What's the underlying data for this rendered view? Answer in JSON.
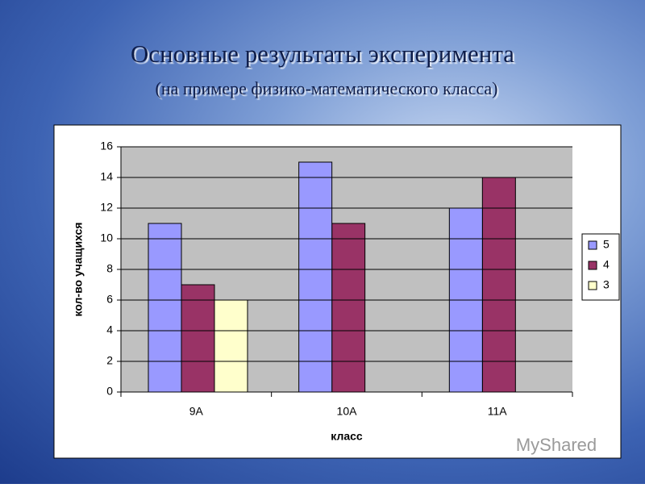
{
  "chart_data": {
    "type": "bar",
    "title": "Основные результаты эксперимента",
    "subtitle": "(на примере физико-математического класса)",
    "xlabel": "класс",
    "ylabel": "кол-во учащихся",
    "categories": [
      "9А",
      "10А",
      "11А"
    ],
    "series": [
      {
        "name": "5",
        "color": "#9999ff",
        "values": [
          11,
          15,
          12
        ]
      },
      {
        "name": "4",
        "color": "#993366",
        "values": [
          7,
          11,
          14
        ]
      },
      {
        "name": "3",
        "color": "#ffffcc",
        "values": [
          6,
          null,
          null
        ]
      }
    ],
    "ylim": [
      0,
      16
    ],
    "yticks": [
      0,
      2,
      4,
      6,
      8,
      10,
      12,
      14,
      16
    ],
    "grid": true,
    "legend": "right"
  },
  "watermark": "MyShared"
}
